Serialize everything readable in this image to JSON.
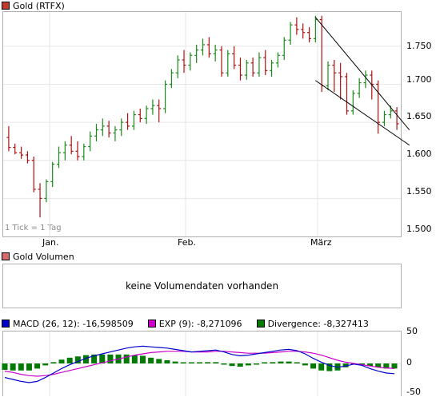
{
  "price_chart": {
    "legend": {
      "label": "Gold (RTFX)",
      "color": "#c0392b"
    },
    "tick_note": "1 Tick = 1 Tag",
    "y_ticks": [
      "1.750",
      "1.700",
      "1.650",
      "1.600",
      "1.550",
      "1.500"
    ],
    "x_ticks": [
      "Jan.",
      "Feb.",
      "März"
    ]
  },
  "volume_chart": {
    "legend": {
      "label": "Gold Volumen",
      "color": "#d96a6a"
    },
    "message": "keine Volumendaten vorhanden"
  },
  "macd_chart": {
    "legend": [
      {
        "label": "MACD (26, 12): -16,598509",
        "color": "#0000cc"
      },
      {
        "label": "EXP (9): -8,271096",
        "color": "#cc00cc"
      },
      {
        "label": "Divergence: -8,327413",
        "color": "#007a00"
      }
    ],
    "y_ticks": [
      "50",
      "0",
      "-50"
    ]
  },
  "chart_data": [
    {
      "type": "candlestick",
      "title": "Gold (RTFX)",
      "ylim": [
        1500,
        1795
      ],
      "up_color": "#1a8a1a",
      "down_color": "#b01010",
      "ohlc": [
        [
          1630,
          1645,
          1612,
          1617
        ],
        [
          1617,
          1622,
          1608,
          1610
        ],
        [
          1610,
          1618,
          1602,
          1607
        ],
        [
          1607,
          1612,
          1596,
          1600
        ],
        [
          1600,
          1605,
          1558,
          1562
        ],
        [
          1562,
          1570,
          1525,
          1550
        ],
        [
          1550,
          1575,
          1545,
          1572
        ],
        [
          1572,
          1598,
          1565,
          1595
        ],
        [
          1595,
          1618,
          1590,
          1610
        ],
        [
          1610,
          1625,
          1600,
          1620
        ],
        [
          1620,
          1632,
          1608,
          1612
        ],
        [
          1612,
          1625,
          1600,
          1605
        ],
        [
          1605,
          1622,
          1600,
          1618
        ],
        [
          1618,
          1638,
          1612,
          1632
        ],
        [
          1632,
          1648,
          1625,
          1640
        ],
        [
          1640,
          1655,
          1632,
          1645
        ],
        [
          1645,
          1652,
          1630,
          1636
        ],
        [
          1636,
          1645,
          1625,
          1640
        ],
        [
          1640,
          1655,
          1632,
          1650
        ],
        [
          1650,
          1662,
          1640,
          1645
        ],
        [
          1645,
          1665,
          1640,
          1660
        ],
        [
          1660,
          1668,
          1650,
          1655
        ],
        [
          1655,
          1672,
          1648,
          1668
        ],
        [
          1668,
          1680,
          1660,
          1672
        ],
        [
          1672,
          1680,
          1650,
          1668
        ],
        [
          1668,
          1705,
          1662,
          1700
        ],
        [
          1700,
          1720,
          1695,
          1715
        ],
        [
          1715,
          1738,
          1708,
          1732
        ],
        [
          1732,
          1745,
          1715,
          1725
        ],
        [
          1725,
          1742,
          1718,
          1738
        ],
        [
          1738,
          1752,
          1728,
          1745
        ],
        [
          1745,
          1760,
          1738,
          1752
        ],
        [
          1752,
          1762,
          1735,
          1740
        ],
        [
          1740,
          1752,
          1730,
          1745
        ],
        [
          1745,
          1750,
          1710,
          1715
        ],
        [
          1715,
          1745,
          1710,
          1740
        ],
        [
          1740,
          1750,
          1720,
          1725
        ],
        [
          1725,
          1735,
          1705,
          1712
        ],
        [
          1712,
          1732,
          1706,
          1728
        ],
        [
          1728,
          1735,
          1710,
          1715
        ],
        [
          1715,
          1742,
          1710,
          1735
        ],
        [
          1735,
          1745,
          1712,
          1718
        ],
        [
          1718,
          1732,
          1710,
          1728
        ],
        [
          1728,
          1742,
          1722,
          1738
        ],
        [
          1738,
          1762,
          1732,
          1758
        ],
        [
          1758,
          1782,
          1752,
          1778
        ],
        [
          1778,
          1788,
          1765,
          1772
        ],
        [
          1772,
          1780,
          1760,
          1768
        ],
        [
          1768,
          1775,
          1755,
          1760
        ],
        [
          1760,
          1790,
          1755,
          1785
        ],
        [
          1785,
          1790,
          1690,
          1698
        ],
        [
          1698,
          1730,
          1692,
          1725
        ],
        [
          1725,
          1732,
          1690,
          1715
        ],
        [
          1715,
          1728,
          1680,
          1710
        ],
        [
          1710,
          1715,
          1660,
          1665
        ],
        [
          1665,
          1692,
          1660,
          1688
        ],
        [
          1688,
          1708,
          1682,
          1702
        ],
        [
          1702,
          1718,
          1695,
          1712
        ],
        [
          1712,
          1718,
          1680,
          1700
        ],
        [
          1700,
          1705,
          1635,
          1650
        ],
        [
          1650,
          1665,
          1645,
          1660
        ],
        [
          1660,
          1672,
          1655,
          1665
        ],
        [
          1665,
          1670,
          1640,
          1648
        ]
      ],
      "trendlines": [
        {
          "from": [
            49,
            1788
          ],
          "to": [
            64,
            1640
          ]
        },
        {
          "from": [
            49,
            1705
          ],
          "to": [
            64,
            1620
          ]
        }
      ]
    },
    {
      "type": "bar",
      "title": "Gold Volumen",
      "values": []
    },
    {
      "type": "line",
      "title": "MACD",
      "ylim": [
        -50,
        50
      ],
      "series": [
        {
          "name": "MACD (26, 12)",
          "color": "#0000cc",
          "values": [
            -22,
            -25,
            -28,
            -30,
            -28,
            -22,
            -15,
            -8,
            -2,
            3,
            8,
            12,
            15,
            18,
            21,
            24,
            26,
            27,
            26,
            25,
            24,
            22,
            20,
            18,
            19,
            20,
            21,
            18,
            14,
            12,
            13,
            15,
            17,
            19,
            21,
            22,
            20,
            15,
            8,
            2,
            -3,
            -6,
            -4,
            -1,
            -3,
            -8,
            -12,
            -15,
            -16
          ]
        },
        {
          "name": "EXP (9)",
          "color": "#cc00cc",
          "values": [
            -12,
            -14,
            -17,
            -19,
            -20,
            -19,
            -17,
            -14,
            -11,
            -8,
            -5,
            -2,
            1,
            4,
            7,
            10,
            13,
            15,
            17,
            18,
            19,
            19,
            19,
            18,
            18,
            18,
            19,
            19,
            18,
            17,
            16,
            16,
            16,
            17,
            18,
            19,
            19,
            18,
            16,
            13,
            9,
            5,
            2,
            0,
            -2,
            -4,
            -6,
            -7,
            -8
          ]
        },
        {
          "name": "Divergence",
          "color": "#007a00",
          "type": "bar",
          "values": [
            -10,
            -11,
            -11,
            -11,
            -8,
            -3,
            2,
            6,
            9,
            11,
            13,
            14,
            14,
            14,
            14,
            14,
            13,
            12,
            9,
            7,
            5,
            3,
            1,
            0,
            1,
            2,
            2,
            -1,
            -4,
            -5,
            -3,
            -1,
            1,
            2,
            3,
            3,
            1,
            -3,
            -8,
            -11,
            -12,
            -11,
            -6,
            -1,
            -1,
            -4,
            -6,
            -8,
            -8
          ]
        }
      ]
    }
  ]
}
